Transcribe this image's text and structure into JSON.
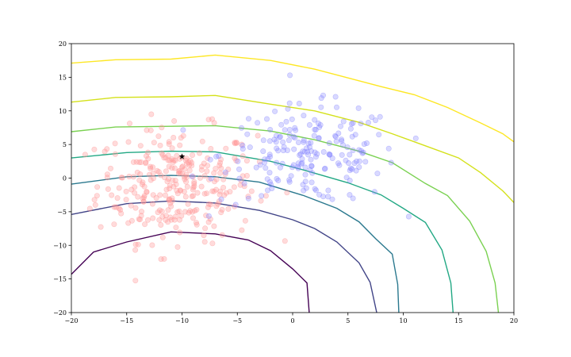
{
  "chart_data": {
    "type": "scatter",
    "title": "",
    "xlabel": "",
    "ylabel": "",
    "xlim": [
      -20,
      20
    ],
    "ylim": [
      -20,
      20
    ],
    "xticks": [
      -20,
      -15,
      -10,
      -5,
      0,
      5,
      10,
      15,
      20
    ],
    "yticks": [
      -20,
      -15,
      -10,
      -5,
      0,
      5,
      10,
      15,
      20
    ],
    "grid": false,
    "legend": "none",
    "marker_point": {
      "x": -10,
      "y": 3.2,
      "marker": "star",
      "color": "#000000"
    },
    "scatter_series": [
      {
        "color": "#ff9999",
        "alpha": 0.35,
        "center": [
          -10.5,
          -1.0
        ],
        "spread": [
          3.6,
          4.2
        ],
        "count": 300
      },
      {
        "color": "#8080ff",
        "alpha": 0.3,
        "center": [
          1.5,
          3.5
        ],
        "spread": [
          4.0,
          3.6
        ],
        "count": 200
      }
    ],
    "contours": [
      {
        "level": 0,
        "color": "#440154",
        "points": [
          [
            -20,
            -14.3
          ],
          [
            -18,
            -11
          ],
          [
            -15,
            -9.5
          ],
          [
            -11,
            -8
          ],
          [
            -7,
            -8.3
          ],
          [
            -4,
            -9.2
          ],
          [
            -2,
            -10.8
          ],
          [
            0,
            -13.5
          ],
          [
            1.3,
            -15.6
          ],
          [
            1.5,
            -20
          ]
        ]
      },
      {
        "level": 1,
        "color": "#414487",
        "points": [
          [
            -20,
            -5.4
          ],
          [
            -15,
            -3.8
          ],
          [
            -11,
            -3.4
          ],
          [
            -7,
            -3.7
          ],
          [
            -3,
            -4.8
          ],
          [
            0,
            -6.2
          ],
          [
            2,
            -7.5
          ],
          [
            4,
            -9.5
          ],
          [
            6,
            -12.6
          ],
          [
            7,
            -15.5
          ],
          [
            7.6,
            -20
          ]
        ]
      },
      {
        "level": 2,
        "color": "#2a788e",
        "points": [
          [
            -20,
            -0.9
          ],
          [
            -15,
            0.2
          ],
          [
            -11,
            0.4
          ],
          [
            -7,
            0.2
          ],
          [
            -3,
            -0.6
          ],
          [
            1,
            -2.6
          ],
          [
            4,
            -4.5
          ],
          [
            6,
            -6.5
          ],
          [
            7.5,
            -9
          ],
          [
            9,
            -11.3
          ],
          [
            9.5,
            -15.8
          ],
          [
            9.6,
            -20
          ]
        ]
      },
      {
        "level": 3,
        "color": "#22a884",
        "points": [
          [
            -20,
            3
          ],
          [
            -15,
            3.8
          ],
          [
            -11,
            4
          ],
          [
            -7,
            3.9
          ],
          [
            -2,
            2.5
          ],
          [
            1,
            1.2
          ],
          [
            5,
            -0.7
          ],
          [
            8,
            -2.5
          ],
          [
            10,
            -4.5
          ],
          [
            12,
            -6.6
          ],
          [
            13.5,
            -10.7
          ],
          [
            14.3,
            -15.6
          ],
          [
            14.5,
            -20
          ]
        ]
      },
      {
        "level": 4,
        "color": "#7ad151",
        "points": [
          [
            -20,
            6.9
          ],
          [
            -16,
            7.6
          ],
          [
            -11,
            7.7
          ],
          [
            -7,
            7.8
          ],
          [
            -2,
            7.0
          ],
          [
            2,
            5.7
          ],
          [
            6,
            4
          ],
          [
            9,
            2.3
          ],
          [
            12,
            -0.8
          ],
          [
            14,
            -2.6
          ],
          [
            16,
            -6.4
          ],
          [
            17.5,
            -10.9
          ],
          [
            18.3,
            -15.6
          ],
          [
            18.6,
            -20
          ]
        ]
      },
      {
        "level": 5,
        "color": "#d4e11b",
        "points": [
          [
            -20,
            11.3
          ],
          [
            -16,
            12
          ],
          [
            -11,
            12.1
          ],
          [
            -7,
            12.3
          ],
          [
            -2,
            11
          ],
          [
            2,
            10
          ],
          [
            6,
            8.3
          ],
          [
            9,
            6.6
          ],
          [
            12,
            4.8
          ],
          [
            15,
            3
          ],
          [
            17,
            0.8
          ],
          [
            19,
            -1.9
          ],
          [
            20.5,
            -4.5
          ],
          [
            22,
            -9
          ],
          [
            22,
            -20
          ]
        ]
      },
      {
        "level": 6,
        "color": "#fde725",
        "points": [
          [
            -20,
            17.1
          ],
          [
            -16,
            17.6
          ],
          [
            -11,
            17.7
          ],
          [
            -7,
            18.3
          ],
          [
            -2,
            17.5
          ],
          [
            2,
            16.2
          ],
          [
            5,
            14.9
          ],
          [
            8,
            13.6
          ],
          [
            11,
            12.4
          ],
          [
            14,
            10.5
          ],
          [
            17,
            8.2
          ],
          [
            19,
            6.6
          ],
          [
            20.5,
            4.8
          ]
        ]
      }
    ]
  }
}
